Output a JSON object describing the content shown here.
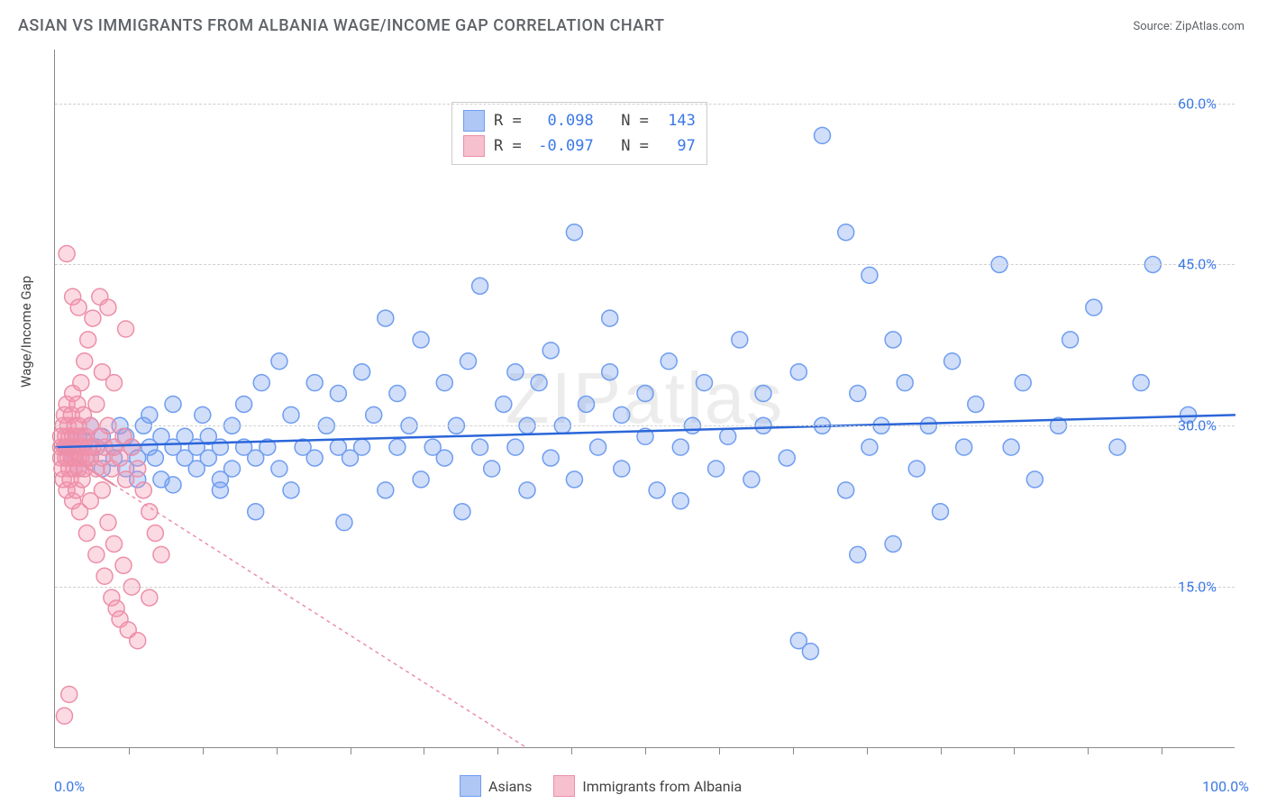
{
  "title": "ASIAN VS IMMIGRANTS FROM ALBANIA WAGE/INCOME GAP CORRELATION CHART",
  "source_label": "Source: ZipAtlas.com",
  "watermark": "ZIPatlas",
  "ylabel": "Wage/Income Gap",
  "chart": {
    "type": "scatter",
    "xlim": [
      0,
      100
    ],
    "ylim": [
      0,
      65
    ],
    "x_min_label": "0.0%",
    "x_max_label": "100.0%",
    "y_ticks": [
      15,
      30,
      45,
      60
    ],
    "y_tick_labels": [
      "15.0%",
      "30.0%",
      "45.0%",
      "60.0%"
    ],
    "x_minor_ticks": [
      6.25,
      12.5,
      18.75,
      25,
      31.25,
      37.5,
      43.75,
      50,
      56.25,
      62.5,
      68.75,
      75,
      81.25,
      87.5,
      93.75
    ],
    "background_color": "#ffffff",
    "grid_color": "#d0d0d0",
    "axis_color": "#888888",
    "marker_radius": 9,
    "marker_stroke_width": 1.5,
    "trend_line_width": 2.5,
    "series": [
      {
        "name": "Asians",
        "fill": "rgba(120,160,240,0.35)",
        "stroke": "#6f9df0",
        "swatch_fill": "#aec7f5",
        "swatch_stroke": "#6f9df0",
        "R": "0.098",
        "N": "143",
        "trend": {
          "x1": 0,
          "y1": 28.0,
          "x2": 100,
          "y2": 31.0,
          "dash": "none",
          "color": "#2b66d9"
        },
        "points": [
          [
            1,
            28
          ],
          [
            1.5,
            27
          ],
          [
            2,
            29
          ],
          [
            2,
            26
          ],
          [
            2.5,
            28.5
          ],
          [
            3,
            27
          ],
          [
            3,
            30
          ],
          [
            3.5,
            28
          ],
          [
            4,
            26
          ],
          [
            4,
            29
          ],
          [
            5,
            28
          ],
          [
            5,
            27
          ],
          [
            5.5,
            30
          ],
          [
            6,
            29
          ],
          [
            6,
            26
          ],
          [
            6.5,
            28
          ],
          [
            7,
            27
          ],
          [
            7,
            25
          ],
          [
            7.5,
            30
          ],
          [
            8,
            28
          ],
          [
            8,
            31
          ],
          [
            8.5,
            27
          ],
          [
            9,
            29
          ],
          [
            9,
            25
          ],
          [
            10,
            28
          ],
          [
            10,
            32
          ],
          [
            10,
            24.5
          ],
          [
            11,
            27
          ],
          [
            11,
            29
          ],
          [
            12,
            28
          ],
          [
            12,
            26
          ],
          [
            12.5,
            31
          ],
          [
            13,
            27
          ],
          [
            13,
            29
          ],
          [
            14,
            28
          ],
          [
            14,
            25
          ],
          [
            14,
            24
          ],
          [
            15,
            26
          ],
          [
            15,
            30
          ],
          [
            16,
            28
          ],
          [
            16,
            32
          ],
          [
            17,
            22
          ],
          [
            17,
            27
          ],
          [
            17.5,
            34
          ],
          [
            18,
            28
          ],
          [
            19,
            36
          ],
          [
            19,
            26
          ],
          [
            20,
            31
          ],
          [
            20,
            24
          ],
          [
            21,
            28
          ],
          [
            22,
            34
          ],
          [
            22,
            27
          ],
          [
            23,
            30
          ],
          [
            24,
            28
          ],
          [
            24,
            33
          ],
          [
            24.5,
            21
          ],
          [
            25,
            27
          ],
          [
            26,
            35
          ],
          [
            26,
            28
          ],
          [
            27,
            31
          ],
          [
            28,
            40
          ],
          [
            28,
            24
          ],
          [
            29,
            28
          ],
          [
            29,
            33
          ],
          [
            30,
            30
          ],
          [
            31,
            38
          ],
          [
            31,
            25
          ],
          [
            32,
            28
          ],
          [
            33,
            34
          ],
          [
            33,
            27
          ],
          [
            34,
            30
          ],
          [
            34.5,
            22
          ],
          [
            35,
            36
          ],
          [
            36,
            28
          ],
          [
            36,
            43
          ],
          [
            37,
            26
          ],
          [
            38,
            32
          ],
          [
            39,
            35
          ],
          [
            39,
            28
          ],
          [
            40,
            30
          ],
          [
            40,
            24
          ],
          [
            41,
            34
          ],
          [
            42,
            27
          ],
          [
            42,
            37
          ],
          [
            43,
            30
          ],
          [
            44,
            25
          ],
          [
            44,
            48
          ],
          [
            45,
            32
          ],
          [
            46,
            28
          ],
          [
            47,
            35
          ],
          [
            47,
            40
          ],
          [
            48,
            26
          ],
          [
            48,
            31
          ],
          [
            50,
            29
          ],
          [
            50,
            33
          ],
          [
            51,
            24
          ],
          [
            52,
            36
          ],
          [
            53,
            28
          ],
          [
            53,
            23
          ],
          [
            54,
            30
          ],
          [
            55,
            34
          ],
          [
            56,
            26
          ],
          [
            57,
            29
          ],
          [
            58,
            38
          ],
          [
            59,
            25
          ],
          [
            60,
            30
          ],
          [
            60,
            33
          ],
          [
            62,
            27
          ],
          [
            63,
            10
          ],
          [
            63,
            35
          ],
          [
            64,
            9
          ],
          [
            65,
            57
          ],
          [
            65,
            30
          ],
          [
            67,
            48
          ],
          [
            67,
            24
          ],
          [
            68,
            33
          ],
          [
            68,
            18
          ],
          [
            69,
            28
          ],
          [
            69,
            44
          ],
          [
            70,
            30
          ],
          [
            71,
            38
          ],
          [
            71,
            19
          ],
          [
            72,
            34
          ],
          [
            73,
            26
          ],
          [
            74,
            30
          ],
          [
            75,
            22
          ],
          [
            76,
            36
          ],
          [
            77,
            28
          ],
          [
            78,
            32
          ],
          [
            80,
            45
          ],
          [
            81,
            28
          ],
          [
            82,
            34
          ],
          [
            83,
            25
          ],
          [
            85,
            30
          ],
          [
            86,
            38
          ],
          [
            88,
            41
          ],
          [
            90,
            28
          ],
          [
            92,
            34
          ],
          [
            93,
            45
          ],
          [
            96,
            31
          ]
        ]
      },
      {
        "name": "Immigrants from Albania",
        "fill": "rgba(245,150,175,0.35)",
        "stroke": "#ec8fa8",
        "swatch_fill": "#f6c0ce",
        "swatch_stroke": "#ec8fa8",
        "R": "-0.097",
        "N": "97",
        "trend": {
          "x1": 0,
          "y1": 28.0,
          "x2": 40,
          "y2": 0,
          "dash": "4,4",
          "color": "#ec8fa8",
          "solid_until_x": 5
        },
        "points": [
          [
            0.5,
            28
          ],
          [
            0.5,
            27
          ],
          [
            0.5,
            29
          ],
          [
            0.6,
            26
          ],
          [
            0.7,
            30
          ],
          [
            0.7,
            25
          ],
          [
            0.8,
            28
          ],
          [
            0.8,
            31
          ],
          [
            0.9,
            27
          ],
          [
            0.9,
            29
          ],
          [
            1,
            28
          ],
          [
            1,
            24
          ],
          [
            1,
            32
          ],
          [
            1.1,
            27
          ],
          [
            1.1,
            30
          ],
          [
            1.2,
            26
          ],
          [
            1.2,
            29
          ],
          [
            1.3,
            28
          ],
          [
            1.3,
            25
          ],
          [
            1.4,
            31
          ],
          [
            1.4,
            27
          ],
          [
            1.5,
            29
          ],
          [
            1.5,
            23
          ],
          [
            1.5,
            33
          ],
          [
            1.6,
            28
          ],
          [
            1.6,
            26
          ],
          [
            1.7,
            30
          ],
          [
            1.7,
            27
          ],
          [
            1.8,
            29
          ],
          [
            1.8,
            24
          ],
          [
            1.9,
            28
          ],
          [
            1.9,
            32
          ],
          [
            2,
            27
          ],
          [
            2,
            26
          ],
          [
            2,
            30
          ],
          [
            2.1,
            28
          ],
          [
            2.1,
            22
          ],
          [
            2.2,
            34
          ],
          [
            2.2,
            27
          ],
          [
            2.3,
            29
          ],
          [
            2.3,
            25
          ],
          [
            2.4,
            31
          ],
          [
            2.4,
            28
          ],
          [
            2.5,
            26
          ],
          [
            2.5,
            36
          ],
          [
            2.6,
            27
          ],
          [
            2.6,
            29
          ],
          [
            2.7,
            20
          ],
          [
            2.8,
            28
          ],
          [
            2.8,
            38
          ],
          [
            3,
            27
          ],
          [
            3,
            30
          ],
          [
            3,
            23
          ],
          [
            3.2,
            28
          ],
          [
            3.2,
            40
          ],
          [
            3.5,
            26
          ],
          [
            3.5,
            32
          ],
          [
            3.5,
            18
          ],
          [
            3.8,
            29
          ],
          [
            3.8,
            42
          ],
          [
            4,
            27
          ],
          [
            4,
            24
          ],
          [
            4,
            35
          ],
          [
            4.2,
            28
          ],
          [
            4.2,
            16
          ],
          [
            4.5,
            30
          ],
          [
            4.5,
            41
          ],
          [
            4.5,
            21
          ],
          [
            4.8,
            26
          ],
          [
            4.8,
            14
          ],
          [
            5,
            28
          ],
          [
            5,
            34
          ],
          [
            5,
            19
          ],
          [
            5.2,
            13
          ],
          [
            5.5,
            27
          ],
          [
            5.5,
            12
          ],
          [
            5.8,
            29
          ],
          [
            5.8,
            17
          ],
          [
            6,
            25
          ],
          [
            6,
            39
          ],
          [
            6.2,
            11
          ],
          [
            6.5,
            28
          ],
          [
            6.5,
            15
          ],
          [
            7,
            26
          ],
          [
            7,
            10
          ],
          [
            7.5,
            24
          ],
          [
            8,
            22
          ],
          [
            8,
            14
          ],
          [
            8.5,
            20
          ],
          [
            9,
            18
          ],
          [
            1,
            46
          ],
          [
            1.5,
            42
          ],
          [
            2,
            41
          ],
          [
            0.8,
            3
          ],
          [
            1.2,
            5
          ]
        ]
      }
    ]
  },
  "legend_bottom": {
    "items": [
      {
        "label": "Asians",
        "fill": "#aec7f5",
        "stroke": "#6f9df0"
      },
      {
        "label": "Immigrants from Albania",
        "fill": "#f6c0ce",
        "stroke": "#ec8fa8"
      }
    ]
  },
  "fonts": {
    "title_size": 18,
    "axis_label_size": 15,
    "tick_label_size": 16,
    "legend_size": 16,
    "stats_size": 17
  },
  "colors": {
    "text": "#5f6368",
    "tick_text": "#3b78e7"
  }
}
